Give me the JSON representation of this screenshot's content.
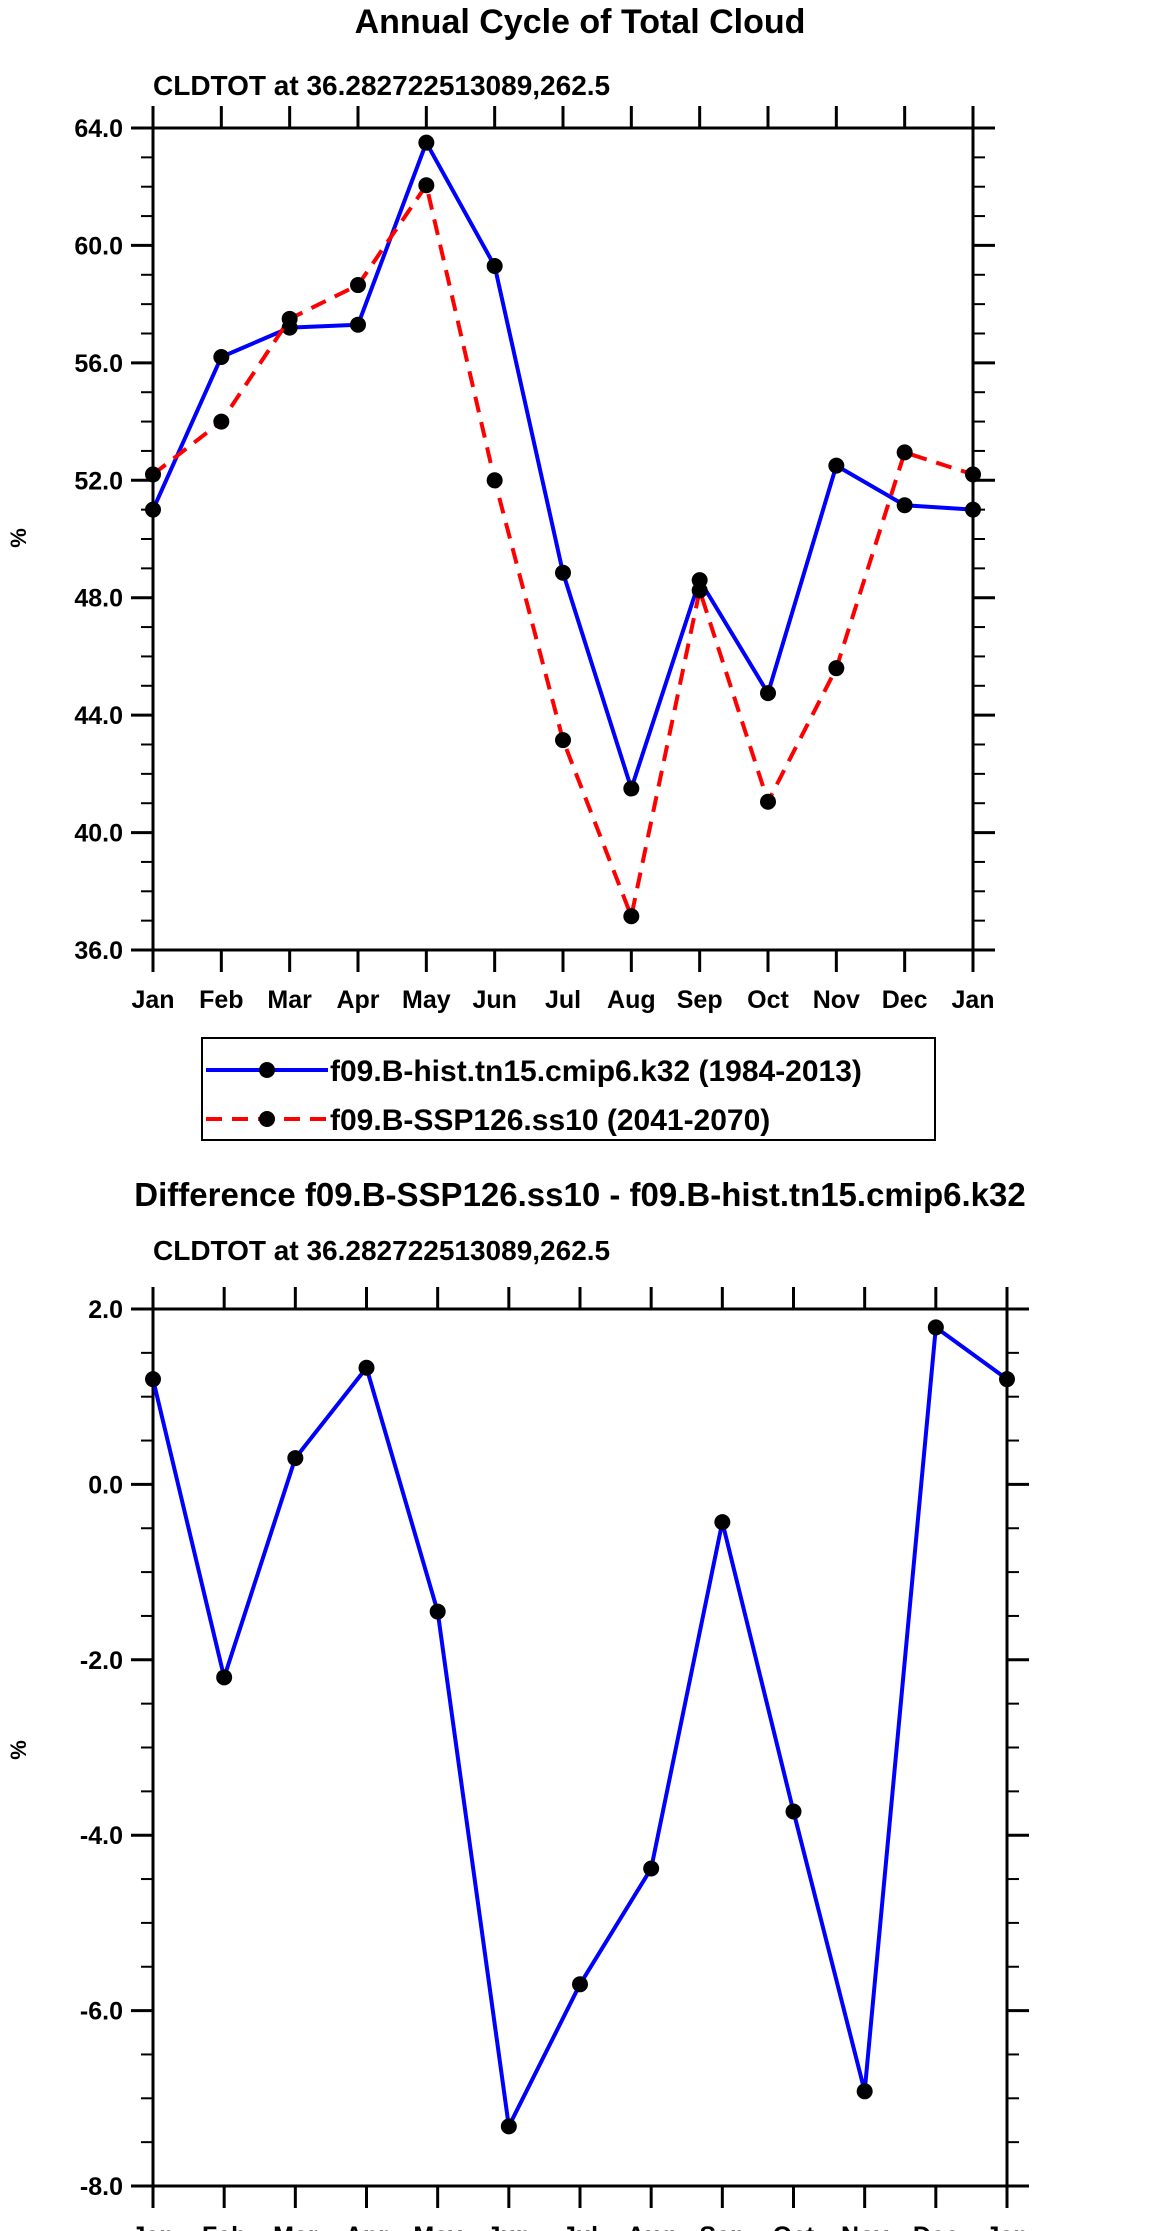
{
  "chart_data": [
    {
      "type": "line",
      "title": "Annual Cycle of Total Cloud",
      "subtitle": "CLDTOT at 36.282722513089,262.5",
      "xlabel": "",
      "ylabel": "%",
      "categories": [
        "Jan",
        "Feb",
        "Mar",
        "Apr",
        "May",
        "Jun",
        "Jul",
        "Aug",
        "Sep",
        "Oct",
        "Nov",
        "Dec",
        "Jan"
      ],
      "ylim": [
        36.0,
        64.0
      ],
      "yticks": [
        "36.0",
        "40.0",
        "44.0",
        "48.0",
        "52.0",
        "56.0",
        "60.0",
        "64.0"
      ],
      "ytick_values": [
        36,
        40,
        44,
        48,
        52,
        56,
        60,
        64
      ],
      "minor_step": 1.0,
      "grid": false,
      "legend_position": "below",
      "series": [
        {
          "name": "f09.B-hist.tn15.cmip6.k32 (1984-2013)",
          "color": "#0000ff",
          "dash": "solid",
          "marker": "filled-circle",
          "values": [
            51.0,
            56.2,
            57.2,
            57.3,
            63.5,
            59.3,
            48.85,
            41.5,
            48.6,
            44.75,
            52.5,
            51.15,
            51.0
          ]
        },
        {
          "name": "f09.B-SSP126.ss10 (2041-2070)",
          "color": "#ff0000",
          "dash": "dashed",
          "marker": "filled-circle",
          "values": [
            52.2,
            54.0,
            57.5,
            58.65,
            62.05,
            52.0,
            43.15,
            37.15,
            48.25,
            41.05,
            45.6,
            52.95,
            52.2
          ]
        }
      ]
    },
    {
      "type": "line",
      "title": "Difference f09.B-SSP126.ss10 - f09.B-hist.tn15.cmip6.k32",
      "subtitle": "CLDTOT at 36.282722513089,262.5",
      "xlabel": "",
      "ylabel": "%",
      "categories": [
        "Jan",
        "Feb",
        "Mar",
        "Apr",
        "May",
        "Jun",
        "Jul",
        "Aug",
        "Sep",
        "Oct",
        "Nov",
        "Dec",
        "Jan"
      ],
      "ylim": [
        -8.0,
        2.0
      ],
      "yticks": [
        "-8.0",
        "-6.0",
        "-4.0",
        "-2.0",
        "0.0",
        "2.0"
      ],
      "ytick_values": [
        -8,
        -6,
        -4,
        -2,
        0,
        2
      ],
      "minor_step": 0.5,
      "grid": false,
      "series": [
        {
          "name": "difference",
          "color": "#0000ff",
          "dash": "solid",
          "marker": "filled-circle",
          "values": [
            1.2,
            -2.2,
            0.3,
            1.33,
            -1.45,
            -7.32,
            -5.7,
            -4.38,
            -0.43,
            -3.73,
            -6.92,
            1.79,
            1.2
          ]
        }
      ]
    }
  ]
}
